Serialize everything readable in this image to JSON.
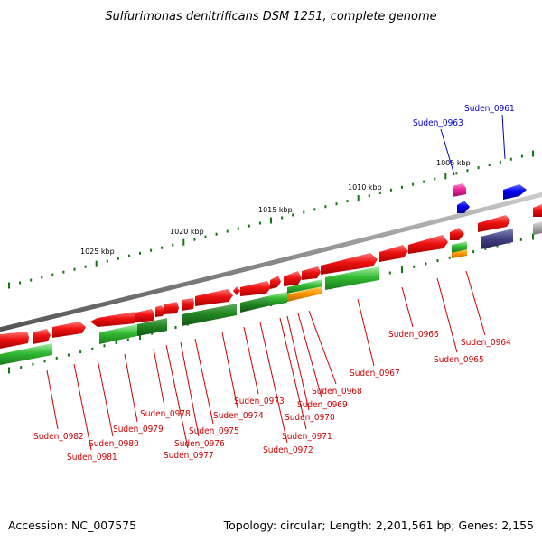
{
  "title": "Sulfurimonas denitrificans DSM 1251, complete genome",
  "footer": {
    "accession": "Accession: NC_007575",
    "summary": "Topology: circular; Length: 2,201,561 bp; Genes: 2,155"
  },
  "scale_labels": [
    "1005 kbp",
    "1010 kbp",
    "1015 kbp",
    "1020 kbp",
    "1025 kbp"
  ],
  "colors": {
    "red_gene": "#ee1111",
    "green_gene": "#33bb33",
    "dark_green_gene": "#228822",
    "blue_gene": "#0000ee",
    "navy_gene": "#444488",
    "magenta_gene": "#ee2299",
    "orange_gene": "#ff9900",
    "gray_gene": "#aaaaaa",
    "backbone": "#888888",
    "label_red": "#cc0000",
    "label_blue": "#0000cc",
    "tick": "#117711"
  },
  "gene_labels": [
    {
      "name": "Suden_0961",
      "color": "blue"
    },
    {
      "name": "Suden_0963",
      "color": "blue"
    },
    {
      "name": "Suden_0964",
      "color": "red"
    },
    {
      "name": "Suden_0965",
      "color": "red"
    },
    {
      "name": "Suden_0966",
      "color": "red"
    },
    {
      "name": "Suden_0967",
      "color": "red"
    },
    {
      "name": "Suden_0968",
      "color": "red"
    },
    {
      "name": "Suden_0969",
      "color": "red"
    },
    {
      "name": "Suden_0970",
      "color": "red"
    },
    {
      "name": "Suden_0971",
      "color": "red"
    },
    {
      "name": "Suden_0972",
      "color": "red"
    },
    {
      "name": "Suden_0973",
      "color": "red"
    },
    {
      "name": "Suden_0974",
      "color": "red"
    },
    {
      "name": "Suden_0975",
      "color": "red"
    },
    {
      "name": "Suden_0976",
      "color": "red"
    },
    {
      "name": "Suden_0977",
      "color": "red"
    },
    {
      "name": "Suden_0978",
      "color": "red"
    },
    {
      "name": "Suden_0979",
      "color": "red"
    },
    {
      "name": "Suden_0980",
      "color": "red"
    },
    {
      "name": "Suden_0981",
      "color": "red"
    },
    {
      "name": "Suden_0982",
      "color": "red"
    }
  ]
}
